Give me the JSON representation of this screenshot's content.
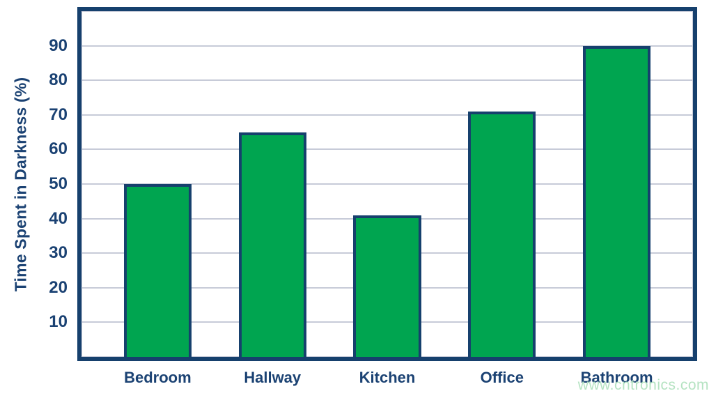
{
  "watermark": "www.cntronics.com",
  "chart_data": {
    "type": "bar",
    "categories": [
      "Bedroom",
      "Hallway",
      "Kitchen",
      "Office",
      "Bathroom"
    ],
    "values": [
      50,
      65,
      41,
      71,
      90
    ],
    "title": "",
    "xlabel": "",
    "ylabel": "Time Spent in Darkness (%)",
    "ylim": [
      0,
      100
    ],
    "yticks": [
      10,
      20,
      30,
      40,
      50,
      60,
      70,
      80,
      90
    ],
    "grid": "horizontal",
    "legend": "none",
    "colors": {
      "bar_fill": "#00A550",
      "bar_border": "#16406D",
      "axis_border": "#16406D",
      "text": "#1B4273",
      "gridline": "#C7CBD8",
      "watermark": "#B5E3C2",
      "background": "#FFFFFF"
    }
  }
}
